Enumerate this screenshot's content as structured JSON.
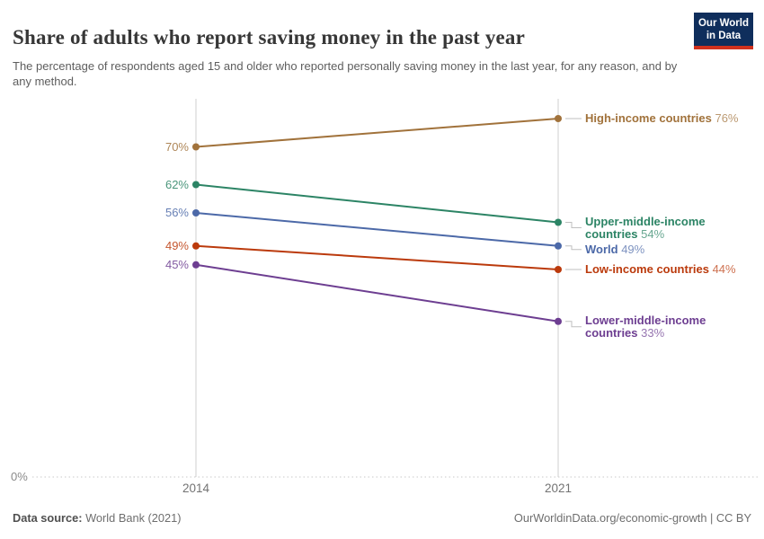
{
  "header": {
    "title": "Share of adults who report saving money in the past year",
    "subtitle": "The percentage of respondents aged 15 and older who reported personally saving money in the last year, for any reason, and by any method.",
    "logo": {
      "line1": "Our World",
      "line2": "in Data",
      "bg": "#0f2e5c",
      "stripe": "#d0311d"
    }
  },
  "chart_data": {
    "type": "line",
    "title": "Share of adults who report saving money in the past year",
    "x": [
      "2014",
      "2021"
    ],
    "ylim": [
      0,
      80
    ],
    "baseline_label": "0%",
    "grid": "dotted-baseline-only",
    "legend_position": "right-of-lines",
    "series": [
      {
        "name": "High-income countries",
        "values": [
          70,
          76
        ],
        "start_label": "70%",
        "end_label": "76%",
        "color": "#a1723b",
        "label_lines": [
          "High-income countries"
        ]
      },
      {
        "name": "Upper-middle-income countries",
        "values": [
          62,
          54
        ],
        "start_label": "62%",
        "end_label": "54%",
        "color": "#2c8465",
        "label_lines": [
          "Upper-middle-income",
          "countries"
        ]
      },
      {
        "name": "World",
        "values": [
          56,
          49
        ],
        "start_label": "56%",
        "end_label": "49%",
        "color": "#4c69a8",
        "label_lines": [
          "World"
        ]
      },
      {
        "name": "Low-income countries",
        "values": [
          49,
          44
        ],
        "start_label": "49%",
        "end_label": "44%",
        "color": "#bb3a0c",
        "label_lines": [
          "Low-income countries"
        ]
      },
      {
        "name": "Lower-middle-income countries",
        "values": [
          45,
          33
        ],
        "start_label": "45%",
        "end_label": "33%",
        "color": "#6d3e91",
        "label_lines": [
          "Lower-middle-income",
          "countries"
        ]
      }
    ]
  },
  "footer": {
    "source_label": "Data source:",
    "source_value": " World Bank (2021)",
    "license": "OurWorldinData.org/economic-growth | CC BY"
  }
}
